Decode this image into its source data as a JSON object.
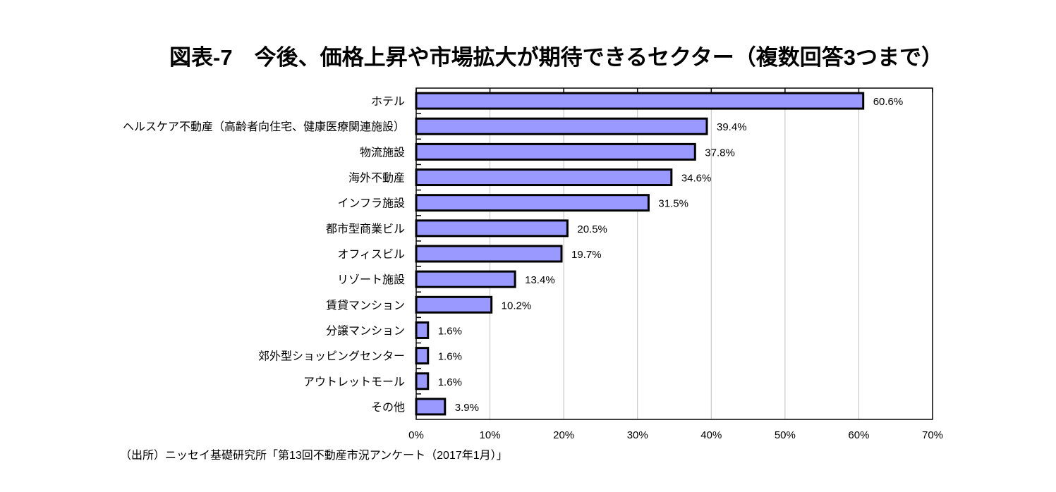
{
  "chart_data": {
    "type": "bar",
    "orientation": "horizontal",
    "title": "図表-7　今後、価格上昇や市場拡大が期待できるセクター（複数回答3つまで）",
    "categories": [
      "ホテル",
      "ヘルスケア不動産（高齢者向住宅、健康医療関連施設）",
      "物流施設",
      "海外不動産",
      "インフラ施設",
      "都市型商業ビル",
      "オフィスビル",
      "リゾート施設",
      "賃貸マンション",
      "分譲マンション",
      "郊外型ショッピングセンター",
      "アウトレットモール",
      "その他"
    ],
    "values": [
      60.6,
      39.4,
      37.8,
      34.6,
      31.5,
      20.5,
      19.7,
      13.4,
      10.2,
      1.6,
      1.6,
      1.6,
      3.9
    ],
    "data_labels": [
      "60.6%",
      "39.4%",
      "37.8%",
      "34.6%",
      "31.5%",
      "20.5%",
      "19.7%",
      "13.4%",
      "10.2%",
      "1.6%",
      "1.6%",
      "1.6%",
      "3.9%"
    ],
    "xlim": [
      0,
      70
    ],
    "xticks": [
      0,
      10,
      20,
      30,
      40,
      50,
      60,
      70
    ],
    "xtick_labels": [
      "0%",
      "10%",
      "20%",
      "30%",
      "40%",
      "50%",
      "60%",
      "70%"
    ],
    "grid": "vertical",
    "legend": "none",
    "colors": {
      "bar_fill": "#9999ff",
      "bar_border": "#000000",
      "grid": "#c0c0c0"
    }
  },
  "source": "（出所）ニッセイ基礎研究所「第13回不動産市況アンケート（2017年1月）」"
}
